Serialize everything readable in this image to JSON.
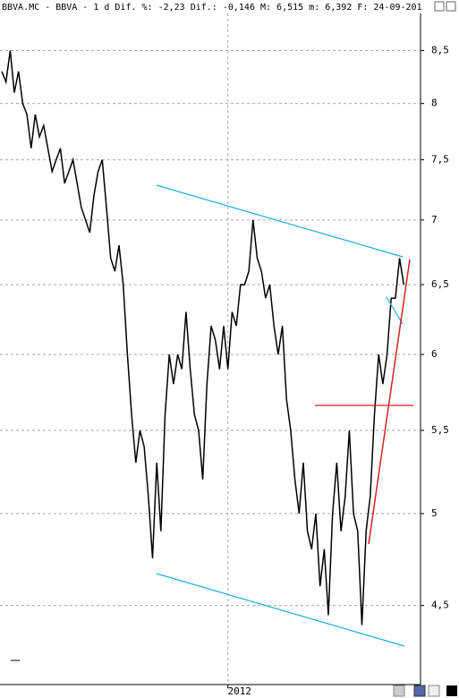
{
  "chart_data": {
    "type": "line",
    "title": "BBVA.MC - BBVA -  1 d Dif. %: -2,23 Dif.: -0,146 M: 6,515 m: 6,392 F: 24-09-201",
    "color": "#000000",
    "log_scale": true,
    "grid": true,
    "ylim": [
      4.11,
      8.87
    ],
    "yticks": [
      {
        "value": 4.5,
        "label": "4,5"
      },
      5,
      {
        "value": 5.5,
        "label": "5,5"
      },
      6,
      {
        "value": 6.5,
        "label": "6,5"
      },
      7,
      {
        "value": 7.5,
        "label": "7,5"
      },
      8,
      {
        "value": 8.5,
        "label": "8,5"
      }
    ],
    "categories": [
      null,
      null,
      null,
      null,
      null,
      null,
      null,
      null,
      null,
      null,
      null,
      null,
      null,
      null,
      null,
      null,
      null,
      null,
      null,
      null,
      null,
      null,
      null,
      null,
      null,
      null,
      null,
      null,
      null,
      null,
      null,
      null,
      null,
      null,
      null,
      null,
      null,
      null,
      null,
      null,
      null,
      null,
      null,
      null,
      null,
      null,
      null,
      null,
      null,
      null,
      null,
      null,
      null,
      null,
      "2012",
      null,
      null,
      null,
      null,
      null,
      null,
      null,
      null,
      null,
      null,
      null,
      null,
      null,
      null,
      null,
      null,
      null,
      null,
      null,
      null,
      null,
      null,
      null,
      null,
      null,
      null,
      null,
      null,
      null,
      null,
      null,
      null,
      null,
      null,
      null,
      null,
      null,
      null,
      null,
      null,
      null,
      null
    ],
    "values": [
      8.3,
      8.2,
      8.5,
      8.1,
      8.3,
      8.0,
      7.9,
      7.6,
      7.9,
      7.7,
      7.8,
      7.6,
      7.4,
      7.5,
      7.6,
      7.3,
      7.4,
      7.5,
      7.3,
      7.1,
      7.0,
      6.9,
      7.2,
      7.4,
      7.5,
      7.1,
      6.7,
      6.6,
      6.8,
      6.5,
      6.0,
      5.6,
      5.3,
      5.5,
      5.4,
      5.1,
      4.75,
      5.3,
      4.9,
      5.6,
      6.0,
      5.8,
      6.0,
      5.9,
      6.3,
      5.9,
      5.6,
      5.5,
      5.2,
      5.8,
      6.2,
      6.1,
      5.9,
      6.2,
      5.9,
      6.3,
      6.2,
      6.5,
      6.5,
      6.6,
      7.0,
      6.7,
      6.6,
      6.4,
      6.5,
      6.2,
      6.0,
      6.2,
      5.7,
      5.5,
      5.2,
      5.0,
      5.3,
      4.9,
      4.8,
      5.0,
      4.6,
      4.8,
      4.45,
      5.0,
      5.3,
      4.9,
      5.1,
      5.5,
      5.0,
      4.9,
      4.4,
      4.9,
      5.1,
      5.6,
      6.0,
      5.8,
      6.0,
      6.4,
      6.4,
      6.7,
      6.5
    ]
  }
}
